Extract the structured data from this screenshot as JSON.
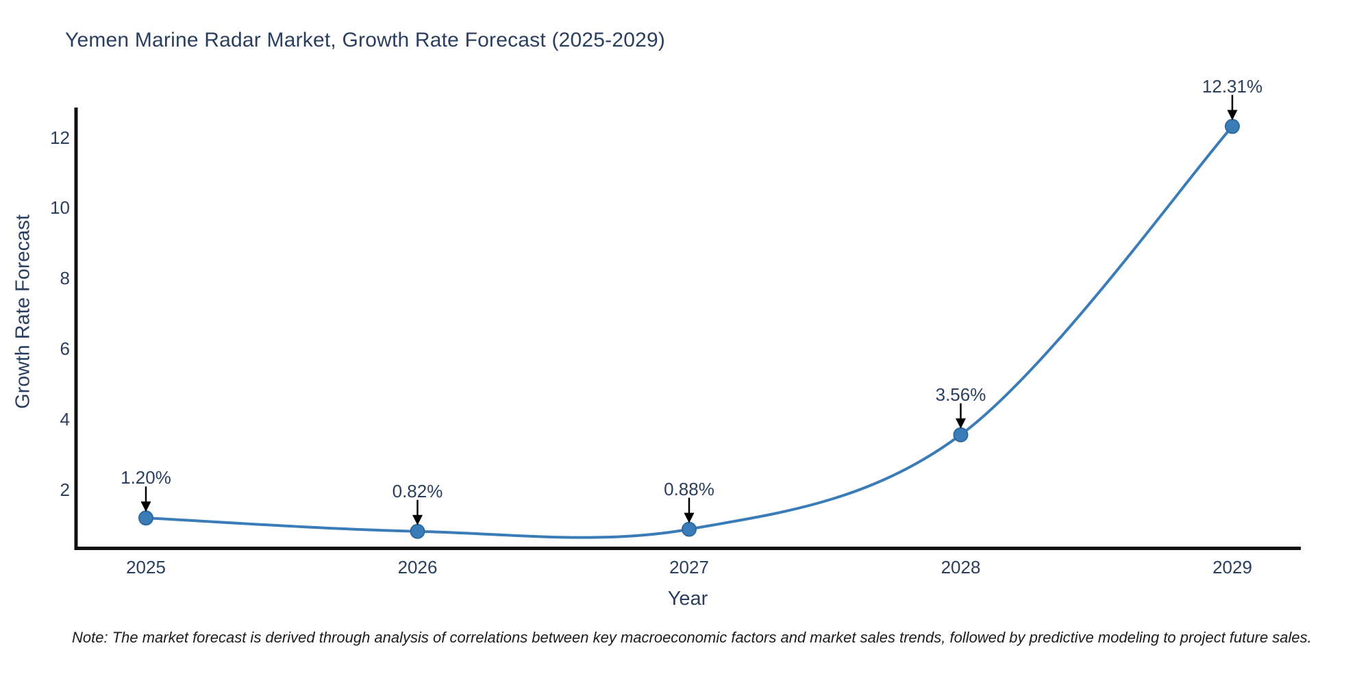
{
  "chart": {
    "note": "Note: The market forecast is derived through analysis of correlations between key macroeconomic factors and market sales trends, followed by predictive modeling to project future sales.",
    "colors": {
      "line": "#3a7cb8",
      "marker_fill": "#3a7cb8",
      "marker_stroke": "#2f6a9f",
      "axis_line": "#101010",
      "arrow": "#000000",
      "text": "#2a3f5f",
      "note_text": "#1c1c1c",
      "background": "#ffffff"
    }
  },
  "chart_data": {
    "type": "line",
    "title": "Yemen Marine Radar Market, Growth Rate Forecast (2025-2029)",
    "xlabel": "Year",
    "ylabel": "Growth Rate Forecast",
    "x": [
      2025,
      2026,
      2027,
      2028,
      2029
    ],
    "series": [
      {
        "name": "Growth Rate Forecast",
        "values": [
          1.2,
          0.82,
          0.88,
          3.56,
          12.31
        ]
      }
    ],
    "point_labels": [
      "1.20%",
      "0.82%",
      "0.88%",
      "3.56%",
      "12.31%"
    ],
    "y_ticks": [
      2,
      4,
      6,
      8,
      10,
      12
    ],
    "ylim": [
      0.35,
      12.9
    ],
    "line_shape": "spline",
    "grid": false,
    "legend_visible": false,
    "annotation_style": "label-with-down-arrow",
    "marker": "circle"
  }
}
